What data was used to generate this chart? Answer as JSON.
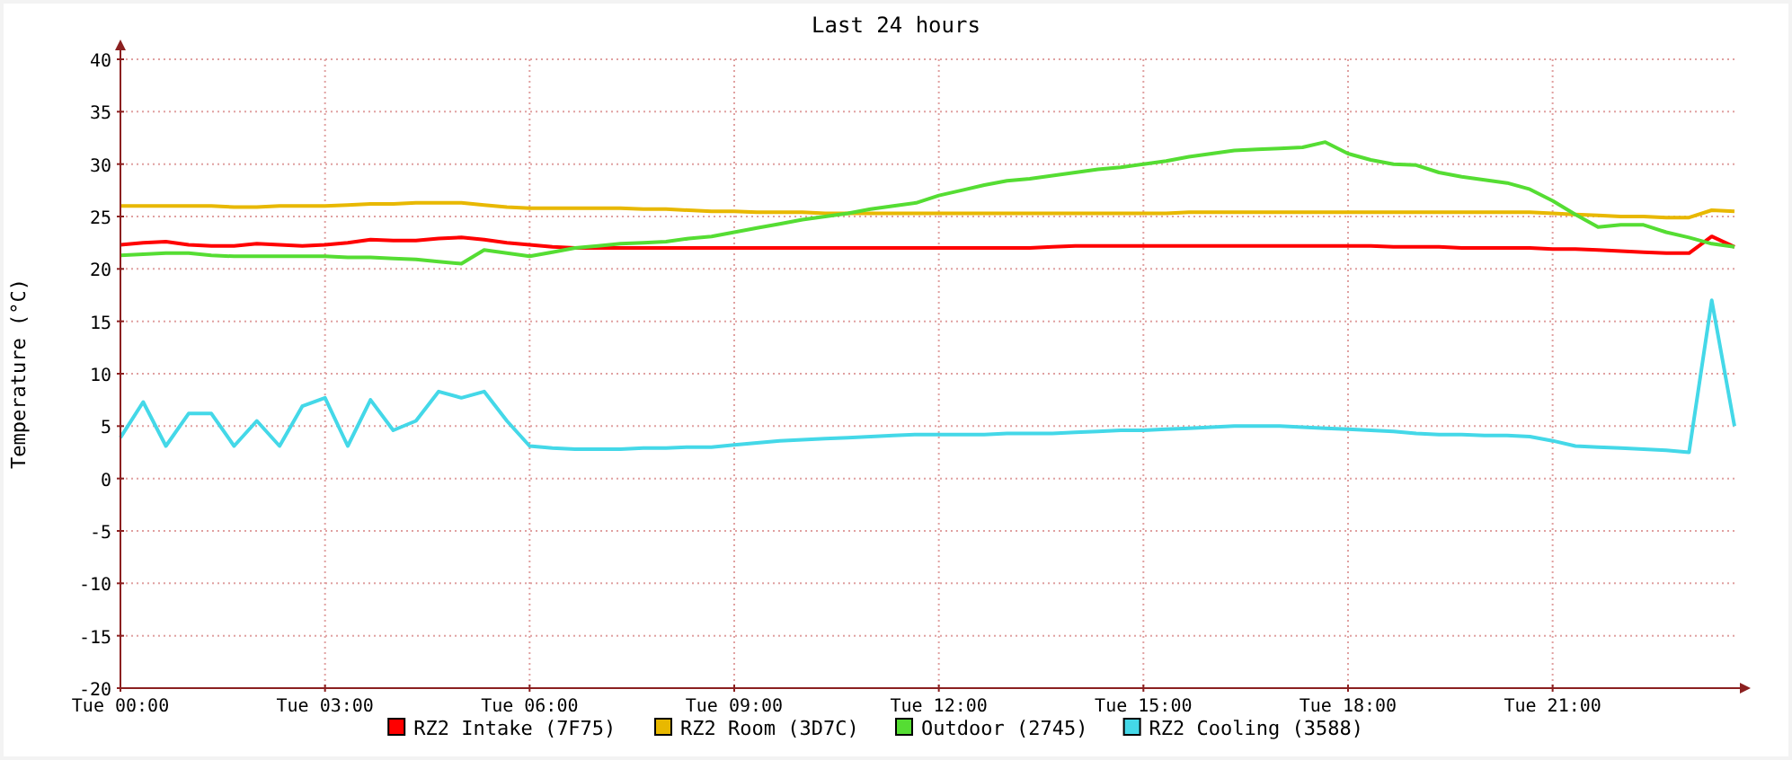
{
  "chart_data": {
    "type": "line",
    "title": "Last 24 hours",
    "ylabel": "Temperature (°C)",
    "categories": [
      "Tue 00:00",
      null,
      null,
      null,
      null,
      null,
      null,
      null,
      null,
      "Tue 03:00",
      null,
      null,
      null,
      null,
      null,
      null,
      null,
      null,
      "Tue 06:00",
      null,
      null,
      null,
      null,
      null,
      null,
      null,
      null,
      "Tue 09:00",
      null,
      null,
      null,
      null,
      null,
      null,
      null,
      null,
      "Tue 12:00",
      null,
      null,
      null,
      null,
      null,
      null,
      null,
      null,
      "Tue 15:00",
      null,
      null,
      null,
      null,
      null,
      null,
      null,
      null,
      "Tue 18:00",
      null,
      null,
      null,
      null,
      null,
      null,
      null,
      null,
      "Tue 21:00",
      null,
      null,
      null,
      null,
      null,
      null,
      null,
      null
    ],
    "ylim": [
      -20,
      40
    ],
    "yticks": [
      -20,
      -15,
      -10,
      -5,
      0,
      5,
      10,
      15,
      20,
      25,
      30,
      35,
      40
    ],
    "grid": true,
    "legend": "bottom",
    "line_style": "solid",
    "marker": "none",
    "series": [
      {
        "name": "RZ2 Intake (7F75)",
        "color": "#ff0000",
        "values": [
          22.3,
          22.5,
          22.6,
          22.3,
          22.2,
          22.2,
          22.4,
          22.3,
          22.2,
          22.3,
          22.5,
          22.8,
          22.7,
          22.7,
          22.9,
          23.0,
          22.8,
          22.5,
          22.3,
          22.1,
          22,
          22,
          22,
          22,
          22,
          22,
          22,
          22,
          22,
          22,
          22,
          22,
          22,
          22,
          22,
          22,
          22,
          22,
          22,
          22,
          22,
          22.1,
          22.2,
          22.2,
          22.2,
          22.2,
          22.2,
          22.2,
          22.2,
          22.2,
          22.2,
          22.2,
          22.2,
          22.2,
          22.2,
          22.2,
          22.1,
          22.1,
          22.1,
          22,
          22,
          22,
          22,
          21.9,
          21.9,
          21.8,
          21.7,
          21.6,
          21.5,
          21.5,
          23.1,
          22.1
        ]
      },
      {
        "name": "RZ2 Room (3D7C)",
        "color": "#e8b800",
        "values": [
          26,
          26,
          26,
          26,
          26,
          25.9,
          25.9,
          26,
          26,
          26,
          26.1,
          26.2,
          26.2,
          26.3,
          26.3,
          26.3,
          26.1,
          25.9,
          25.8,
          25.8,
          25.8,
          25.8,
          25.8,
          25.7,
          25.7,
          25.6,
          25.5,
          25.5,
          25.4,
          25.4,
          25.4,
          25.3,
          25.3,
          25.3,
          25.3,
          25.3,
          25.3,
          25.3,
          25.3,
          25.3,
          25.3,
          25.3,
          25.3,
          25.3,
          25.3,
          25.3,
          25.3,
          25.4,
          25.4,
          25.4,
          25.4,
          25.4,
          25.4,
          25.4,
          25.4,
          25.4,
          25.4,
          25.4,
          25.4,
          25.4,
          25.4,
          25.4,
          25.4,
          25.3,
          25.2,
          25.1,
          25,
          25,
          24.9,
          24.9,
          25.6,
          25.5
        ]
      },
      {
        "name": "Outdoor (2745)",
        "color": "#55dd33",
        "values": [
          21.3,
          21.4,
          21.5,
          21.5,
          21.3,
          21.2,
          21.2,
          21.2,
          21.2,
          21.2,
          21.1,
          21.1,
          21,
          20.9,
          20.7,
          20.5,
          21.8,
          21.5,
          21.2,
          21.6,
          22,
          22.2,
          22.4,
          22.5,
          22.6,
          22.9,
          23.1,
          23.5,
          23.9,
          24.3,
          24.7,
          25,
          25.3,
          25.7,
          26,
          26.3,
          27,
          27.5,
          28,
          28.4,
          28.6,
          28.9,
          29.2,
          29.5,
          29.7,
          30,
          30.3,
          30.7,
          31,
          31.3,
          31.4,
          31.5,
          31.6,
          32.1,
          31,
          30.4,
          30,
          29.9,
          29.2,
          28.8,
          28.5,
          28.2,
          27.6,
          26.5,
          25.2,
          24,
          24.2,
          24.2,
          23.5,
          23,
          22.4,
          22.1
        ]
      },
      {
        "name": "RZ2 Cooling (3588)",
        "color": "#44d8e8",
        "values": [
          3.9,
          7.3,
          3.1,
          6.2,
          6.2,
          3.1,
          5.5,
          3.1,
          6.9,
          7.7,
          3.1,
          7.5,
          4.6,
          5.5,
          8.3,
          7.7,
          8.3,
          5.5,
          3.1,
          2.9,
          2.8,
          2.8,
          2.8,
          2.9,
          2.9,
          3,
          3,
          3.2,
          3.4,
          3.6,
          3.7,
          3.8,
          3.9,
          4,
          4.1,
          4.2,
          4.2,
          4.2,
          4.2,
          4.3,
          4.3,
          4.3,
          4.4,
          4.5,
          4.6,
          4.6,
          4.7,
          4.8,
          4.9,
          5,
          5,
          5,
          4.9,
          4.8,
          4.7,
          4.6,
          4.5,
          4.3,
          4.2,
          4.2,
          4.1,
          4.1,
          4,
          3.6,
          3.1,
          3,
          2.9,
          2.8,
          2.7,
          2.5,
          17,
          5
        ]
      }
    ]
  }
}
